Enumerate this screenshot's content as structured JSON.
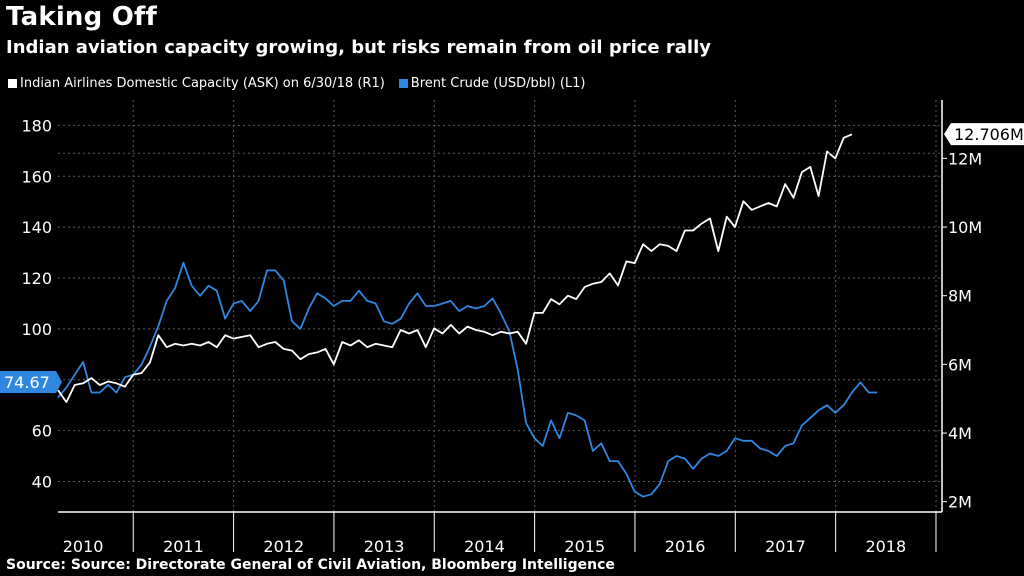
{
  "title": "Taking Off",
  "subtitle": "Indian aviation capacity growing, but risks remain from oil price rally",
  "source": "Source: Source: Directorate General of Civil Aviation, Bloomberg Intelligence",
  "colors": {
    "capacity": "#ffffff",
    "brent": "#2f87e0",
    "grid": "#5a5a5a",
    "axis": "#ffffff"
  },
  "legend": [
    {
      "label": "Indian Airlines Domestic Capacity (ASK) on 6/30/18 (R1)",
      "color": "#ffffff"
    },
    {
      "label": "Brent Crude (USD/bbl) (L1)",
      "color": "#2f87e0"
    }
  ],
  "chart_data": {
    "type": "line",
    "title": "Taking Off",
    "subtitle": "Indian aviation capacity growing, but risks remain from oil price rally",
    "x_start": 2009.75,
    "x_end": 2018.56,
    "x_step": 0.0833,
    "x_ticks": [
      "2010",
      "2011",
      "2012",
      "2013",
      "2014",
      "2015",
      "2016",
      "2017",
      "2018"
    ],
    "left_axis": {
      "ylim": [
        28,
        190
      ],
      "ticks": [
        40,
        60,
        80,
        100,
        120,
        140,
        160,
        180
      ],
      "labels": [
        "40",
        "60",
        "80",
        "100",
        "120",
        "140",
        "160",
        "180"
      ]
    },
    "right_axis": {
      "ylim": [
        1.7,
        13.7
      ],
      "ticks": [
        2,
        4,
        6,
        8,
        10,
        12
      ],
      "labels": [
        "2M",
        "4M",
        "6M",
        "8M",
        "10M",
        "12M"
      ]
    },
    "last_value_labels": {
      "capacity": "12.706M",
      "brent": "74.67"
    },
    "series": [
      {
        "name": "Brent Crude (USD/bbl) (L1)",
        "axis": "left",
        "values": [
          73,
          77,
          82,
          87,
          75,
          75,
          78,
          75,
          81,
          82,
          86,
          93,
          101,
          111,
          116,
          126,
          117,
          113,
          117,
          115,
          104,
          110,
          111,
          107,
          111,
          123,
          123,
          119,
          103,
          100,
          108,
          114,
          112,
          109,
          111,
          111,
          115,
          111,
          110,
          103,
          102,
          104,
          110,
          114,
          109,
          109,
          110,
          111,
          107,
          109,
          108,
          109,
          112,
          106,
          99,
          84,
          63,
          57,
          54,
          64,
          57,
          67,
          66,
          64,
          52,
          55,
          48,
          48,
          43,
          36,
          34,
          35,
          39,
          48,
          50,
          49,
          45,
          49,
          51,
          50,
          52,
          57,
          56,
          56,
          53,
          52,
          50,
          54,
          55,
          62,
          65,
          68,
          70,
          67,
          70,
          75,
          79,
          75,
          75
        ]
      },
      {
        "name": "Indian Airlines Domestic Capacity (ASK) on 6/30/18 (R1)",
        "axis": "right",
        "values": [
          5.25,
          4.9,
          5.4,
          5.45,
          5.6,
          5.4,
          5.5,
          5.45,
          5.35,
          5.7,
          5.75,
          6.05,
          6.85,
          6.5,
          6.6,
          6.55,
          6.6,
          6.55,
          6.65,
          6.5,
          6.85,
          6.75,
          6.8,
          6.85,
          6.5,
          6.6,
          6.65,
          6.45,
          6.4,
          6.15,
          6.3,
          6.35,
          6.45,
          6.0,
          6.65,
          6.55,
          6.7,
          6.5,
          6.6,
          6.55,
          6.5,
          7.0,
          6.9,
          7.0,
          6.5,
          7.05,
          6.9,
          7.15,
          6.9,
          7.1,
          7.0,
          6.95,
          6.85,
          6.95,
          6.9,
          6.95,
          6.6,
          7.5,
          7.5,
          7.9,
          7.75,
          8.0,
          7.9,
          8.25,
          8.35,
          8.4,
          8.65,
          8.3,
          9.0,
          8.95,
          9.5,
          9.3,
          9.5,
          9.45,
          9.3,
          9.9,
          9.9,
          10.1,
          10.25,
          9.3,
          10.3,
          10.0,
          10.75,
          10.5,
          10.6,
          10.7,
          10.6,
          11.25,
          10.85,
          11.6,
          11.75,
          10.9,
          12.2,
          12.0,
          12.6,
          12.7
        ]
      }
    ]
  }
}
